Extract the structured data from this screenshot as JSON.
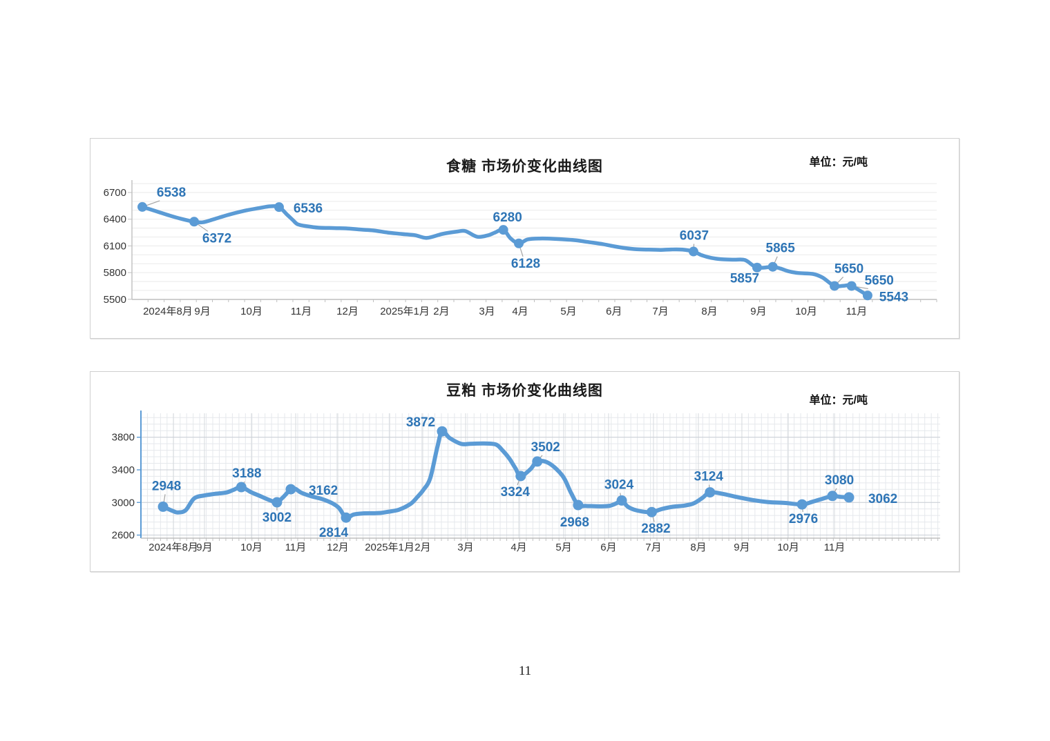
{
  "page": {
    "number": "11"
  },
  "chart_data": [
    {
      "type": "line",
      "title": "食糖 市场价变化曲线图",
      "unit": "单位：元/吨",
      "ylabel": "元/吨",
      "ylim": [
        5500,
        6800
      ],
      "line_color": "#5b9bd5",
      "label_color": "#2e75b6",
      "grid": "horizontal-minor",
      "legend": "none",
      "yticks": [
        6700,
        6400,
        6100,
        5800,
        5500
      ],
      "x_ticks": [
        {
          "label": "2024年8月",
          "pos": 0.0446
        },
        {
          "label": "9月",
          "pos": 0.0876
        },
        {
          "label": "10月",
          "pos": 0.1485
        },
        {
          "label": "11月",
          "pos": 0.2103
        },
        {
          "label": "12月",
          "pos": 0.2678
        },
        {
          "label": "2025年1月",
          "pos": 0.3391
        },
        {
          "label": "2月",
          "pos": 0.3845
        },
        {
          "label": "3月",
          "pos": 0.4412
        },
        {
          "label": "4月",
          "pos": 0.4824
        },
        {
          "label": "5月",
          "pos": 0.5425
        },
        {
          "label": "6月",
          "pos": 0.599
        },
        {
          "label": "7月",
          "pos": 0.6567
        },
        {
          "label": "8月",
          "pos": 0.7176
        },
        {
          "label": "9月",
          "pos": 0.7785
        },
        {
          "label": "10月",
          "pos": 0.8378
        },
        {
          "label": "11月",
          "pos": 0.9004
        }
      ],
      "labeled_values": [
        6538,
        6372,
        6536,
        6280,
        6128,
        6037,
        5857,
        5865,
        5650,
        5650,
        5543
      ],
      "series": [
        {
          "name": "食糖市场价",
          "points": [
            [
              0.0129,
              6538,
              "6538",
              42,
              -15,
              "m",
              1
            ],
            [
              0.03,
              6490
            ],
            [
              0.047,
              6440
            ],
            [
              0.063,
              6400
            ],
            [
              0.0773,
              6372,
              "6372",
              33,
              30,
              "m",
              1
            ],
            [
              0.088,
              6365
            ],
            [
              0.102,
              6400
            ],
            [
              0.12,
              6450
            ],
            [
              0.14,
              6495
            ],
            [
              0.158,
              6525
            ],
            [
              0.172,
              6545
            ],
            [
              0.1828,
              6536,
              "6536",
              42,
              8,
              "m",
              0
            ],
            [
              0.193,
              6450
            ],
            [
              0.2,
              6390
            ],
            [
              0.206,
              6343
            ],
            [
              0.218,
              6320
            ],
            [
              0.232,
              6305
            ],
            [
              0.252,
              6300
            ],
            [
              0.266,
              6297
            ],
            [
              0.285,
              6283
            ],
            [
              0.3,
              6274
            ],
            [
              0.318,
              6250
            ],
            [
              0.335,
              6234
            ],
            [
              0.352,
              6219
            ],
            [
              0.3665,
              6190
            ],
            [
              0.386,
              6235
            ],
            [
              0.405,
              6262
            ],
            [
              0.4146,
              6266
            ],
            [
              0.4292,
              6202
            ],
            [
              0.4429,
              6220
            ],
            [
              0.4506,
              6248
            ],
            [
              0.4615,
              6280,
              "6280",
              6,
              -12,
              "m",
              0
            ],
            [
              0.4704,
              6185
            ],
            [
              0.4807,
              6128,
              "6128",
              10,
              35,
              "m",
              1
            ],
            [
              0.4918,
              6173
            ],
            [
              0.5064,
              6183
            ],
            [
              0.5236,
              6180
            ],
            [
              0.5494,
              6165
            ],
            [
              0.5665,
              6144
            ],
            [
              0.585,
              6120
            ],
            [
              0.599,
              6095
            ],
            [
              0.613,
              6075
            ],
            [
              0.627,
              6062
            ],
            [
              0.642,
              6058
            ],
            [
              0.657,
              6055
            ],
            [
              0.67,
              6060
            ],
            [
              0.684,
              6058
            ],
            [
              0.6978,
              6037,
              "6037",
              1,
              -17,
              "m",
              1
            ],
            [
              0.708,
              5995
            ],
            [
              0.72,
              5965
            ],
            [
              0.733,
              5950
            ],
            [
              0.748,
              5945
            ],
            [
              0.762,
              5940
            ],
            [
              0.7768,
              5857,
              "5857",
              -18,
              22,
              "m",
              0
            ],
            [
              0.7963,
              5865,
              "5865",
              11,
              -21,
              "m",
              1
            ],
            [
              0.806,
              5845
            ],
            [
              0.816,
              5815
            ],
            [
              0.828,
              5795
            ],
            [
              0.846,
              5785
            ],
            [
              0.858,
              5745
            ],
            [
              0.873,
              5650,
              "5650",
              21,
              -19,
              "m",
              1
            ],
            [
              0.884,
              5652
            ],
            [
              0.8942,
              5650,
              "5650",
              40,
              -2,
              "m",
              1
            ],
            [
              0.9141,
              5543,
              "5543",
              38,
              8,
              "m",
              0
            ]
          ]
        }
      ]
    },
    {
      "type": "line",
      "title": "豆粕 市场价变化曲线图",
      "unit": "单位：元/吨",
      "ylabel": "元/吨",
      "ylim": [
        2600,
        4100
      ],
      "line_color": "#5b9bd5",
      "label_color": "#2e75b6",
      "grid": "fine-mesh",
      "legend": "none",
      "yticks": [
        3800,
        3400,
        3000,
        2600
      ],
      "x_ticks": [
        {
          "label": "2024年8月",
          "pos": 0.0406
        },
        {
          "label": "9月",
          "pos": 0.0795
        },
        {
          "label": "10月",
          "pos": 0.1383
        },
        {
          "label": "11月",
          "pos": 0.1936
        },
        {
          "label": "12月",
          "pos": 0.2463
        },
        {
          "label": "2025年1月",
          "pos": 0.3112
        },
        {
          "label": "2月",
          "pos": 0.3526
        },
        {
          "label": "3月",
          "pos": 0.4062
        },
        {
          "label": "4月",
          "pos": 0.4728
        },
        {
          "label": "5月",
          "pos": 0.529
        },
        {
          "label": "6月",
          "pos": 0.5851
        },
        {
          "label": "7月",
          "pos": 0.6413
        },
        {
          "label": "8月",
          "pos": 0.6975
        },
        {
          "label": "9月",
          "pos": 0.7519
        },
        {
          "label": "10月",
          "pos": 0.8099
        },
        {
          "label": "11月",
          "pos": 0.8678
        }
      ],
      "labeled_values": [
        2948,
        3188,
        3002,
        3162,
        2814,
        3872,
        3324,
        3502,
        2968,
        3024,
        2882,
        3124,
        2976,
        3080,
        3062
      ],
      "series": [
        {
          "name": "豆粕市场价",
          "points": [
            [
              0.0277,
              2948,
              "2948",
              5,
              -24,
              "m",
              1
            ],
            [
              0.04,
              2895
            ],
            [
              0.0464,
              2878
            ],
            [
              0.056,
              2905
            ],
            [
              0.0666,
              3050
            ],
            [
              0.079,
              3085
            ],
            [
              0.0925,
              3105
            ],
            [
              0.1069,
              3122
            ],
            [
              0.116,
              3155
            ],
            [
              0.1256,
              3188,
              "3188",
              8,
              -14,
              "m",
              1
            ],
            [
              0.138,
              3125
            ],
            [
              0.15,
              3075
            ],
            [
              0.162,
              3025
            ],
            [
              0.1702,
              3002,
              "3002",
              0,
              28,
              "m",
              1
            ],
            [
              0.179,
              3075
            ],
            [
              0.1875,
              3162,
              "3162",
              26,
              8,
              "s",
              0
            ],
            [
              0.193,
              3168
            ],
            [
              0.2005,
              3120
            ],
            [
              0.2135,
              3075
            ],
            [
              0.2264,
              3043
            ],
            [
              0.2394,
              2990
            ],
            [
              0.248,
              2930
            ],
            [
              0.2567,
              2814,
              "2814",
              -18,
              28,
              "m",
              0
            ],
            [
              0.266,
              2852
            ],
            [
              0.278,
              2866
            ],
            [
              0.291,
              2868
            ],
            [
              0.3005,
              2872
            ],
            [
              0.3086,
              2885
            ],
            [
              0.323,
              2912
            ],
            [
              0.3374,
              2983
            ],
            [
              0.346,
              3068
            ],
            [
              0.3533,
              3153
            ],
            [
              0.3619,
              3296
            ],
            [
              0.3706,
              3667
            ],
            [
              0.3768,
              3872,
              "3872",
              -31,
              -7,
              "m",
              0
            ],
            [
              0.3863,
              3790
            ],
            [
              0.4008,
              3718
            ],
            [
              0.4123,
              3720
            ],
            [
              0.4296,
              3723
            ],
            [
              0.4443,
              3710
            ],
            [
              0.4529,
              3633
            ],
            [
              0.4613,
              3534
            ],
            [
              0.4685,
              3420
            ],
            [
              0.4752,
              3324,
              "3324",
              -8,
              29,
              "m",
              1
            ],
            [
              0.4872,
              3406
            ],
            [
              0.4959,
              3502,
              "3502",
              12,
              -15,
              "m",
              1
            ],
            [
              0.5102,
              3483
            ],
            [
              0.5275,
              3327
            ],
            [
              0.538,
              3120
            ],
            [
              0.547,
              2968,
              "2968",
              -5,
              31,
              "m",
              0
            ],
            [
              0.556,
              2958
            ],
            [
              0.566,
              2955
            ],
            [
              0.576,
              2952
            ],
            [
              0.587,
              2960
            ],
            [
              0.595,
              2990
            ],
            [
              0.6016,
              3024,
              "3024",
              -4,
              -17,
              "m",
              1
            ],
            [
              0.609,
              2950
            ],
            [
              0.617,
              2912
            ],
            [
              0.627,
              2890
            ],
            [
              0.6391,
              2882,
              "2882",
              6,
              30,
              "m",
              1
            ],
            [
              0.652,
              2920
            ],
            [
              0.666,
              2948
            ],
            [
              0.68,
              2962
            ],
            [
              0.692,
              2990
            ],
            [
              0.703,
              3060
            ],
            [
              0.712,
              3124,
              "3124",
              -2,
              -17,
              "m",
              1
            ],
            [
              0.728,
              3105
            ],
            [
              0.745,
              3068
            ],
            [
              0.765,
              3030
            ],
            [
              0.785,
              3005
            ],
            [
              0.805,
              2995
            ],
            [
              0.8272,
              2976,
              "2976",
              2,
              27,
              "m",
              1
            ],
            [
              0.84,
              3008
            ],
            [
              0.855,
              3052
            ],
            [
              0.8652,
              3080,
              "3080",
              10,
              -17,
              "m",
              1
            ],
            [
              0.876,
              3068
            ],
            [
              0.8859,
              3062,
              "3062",
              28,
              8,
              "s",
              0
            ]
          ]
        }
      ]
    }
  ]
}
